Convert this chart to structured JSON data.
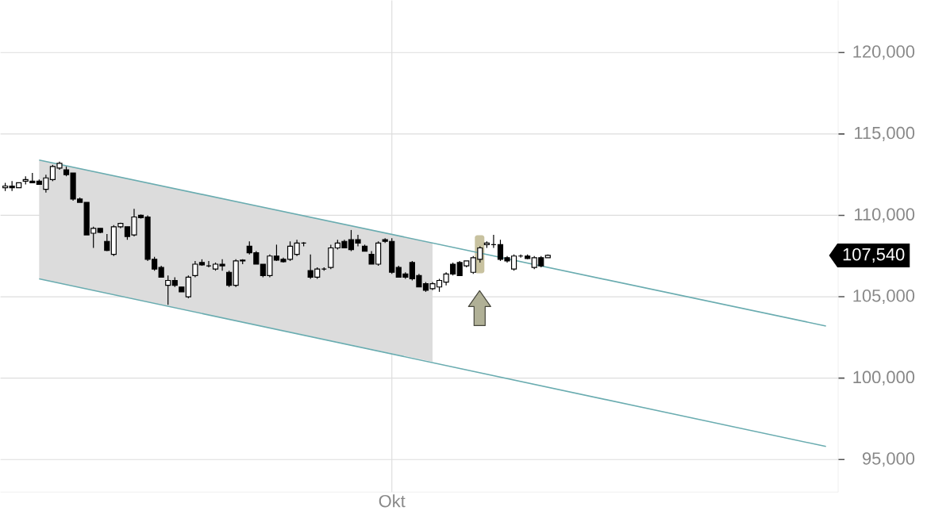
{
  "chart_data": {
    "type": "candlestick",
    "ylim": [
      93000,
      123200
    ],
    "yticks": [
      {
        "value": 95000,
        "label": "95,000"
      },
      {
        "value": 100000,
        "label": "100,000"
      },
      {
        "value": 105000,
        "label": "105,000"
      },
      {
        "value": 110000,
        "label": "110,000"
      },
      {
        "value": 115000,
        "label": "115,000"
      },
      {
        "value": 120000,
        "label": "120,000"
      }
    ],
    "grid": true,
    "categories": [
      null,
      null,
      null,
      null,
      null,
      null,
      null,
      null,
      null,
      null,
      null,
      null,
      null,
      null,
      null,
      null,
      null,
      null,
      null,
      null,
      null,
      null,
      null,
      null,
      null,
      null,
      null,
      null,
      null,
      null,
      null,
      null,
      null,
      null,
      null,
      null,
      null,
      null,
      null,
      null,
      null,
      null,
      null,
      null,
      null,
      null,
      null,
      null,
      null,
      null,
      null,
      null,
      null,
      null,
      null,
      null,
      null,
      "Okt",
      null,
      null,
      null,
      null,
      null,
      null,
      null,
      null,
      null,
      null,
      null,
      null,
      null,
      null,
      null,
      null,
      null,
      null,
      null,
      null,
      null,
      null,
      null,
      null,
      null,
      null,
      null,
      null,
      null,
      null,
      null,
      null,
      null,
      null,
      null,
      null,
      null,
      null,
      null,
      null,
      null,
      null,
      null,
      null,
      null,
      null,
      null,
      null,
      null,
      null,
      null,
      null,
      null,
      null,
      null,
      null,
      null,
      null,
      null,
      null,
      null,
      null,
      null,
      null,
      null
    ],
    "annotations": [
      "107,540"
    ],
    "series": [
      {
        "type": "line",
        "color": "#6aacb0",
        "values": [
          null,
          null,
          null,
          null,
          null,
          113400,
          null,
          null,
          null,
          null,
          null,
          null,
          null,
          null,
          null,
          null,
          null,
          null,
          null,
          null,
          null,
          null,
          null,
          null,
          null,
          null,
          null,
          null,
          null,
          null,
          null,
          null,
          null,
          null,
          null,
          null,
          null,
          null,
          null,
          null,
          null,
          null,
          null,
          null,
          null,
          null,
          null,
          null,
          null,
          null,
          null,
          null,
          null,
          null,
          null,
          null,
          null,
          null,
          null,
          null,
          null,
          null,
          null,
          null,
          null,
          null,
          null,
          null,
          null,
          null,
          null,
          null,
          null,
          null,
          null,
          null,
          null,
          null,
          null,
          null,
          null,
          null,
          null,
          null,
          null,
          null,
          null,
          null,
          null,
          null,
          null,
          null,
          null,
          null,
          null,
          null,
          null,
          null,
          null,
          null,
          null,
          null,
          null,
          null,
          null,
          null,
          null,
          null,
          null,
          null,
          null,
          null,
          null,
          null,
          null,
          null,
          null,
          null,
          null,
          null,
          null,
          103200,
          null
        ],
        "upper": [
          null,
          null,
          null,
          null,
          null,
          113400,
          null,
          null,
          null,
          null,
          null,
          null,
          null,
          null,
          null,
          null,
          null,
          null,
          null,
          null,
          null,
          null,
          null,
          null,
          null,
          null,
          null,
          null,
          null,
          null,
          null,
          null,
          null,
          null,
          null,
          null,
          null,
          null,
          null,
          null,
          null,
          null,
          null,
          null,
          null,
          null,
          null,
          null,
          null,
          null,
          null,
          null,
          null,
          null,
          null,
          null,
          null,
          null,
          null,
          null,
          null,
          null,
          null,
          108300,
          null,
          null,
          null,
          null,
          null,
          null,
          null,
          null,
          null,
          null,
          null,
          null,
          null,
          null,
          null,
          null,
          null,
          null,
          null,
          null,
          null,
          null,
          null,
          null,
          null,
          null,
          null,
          null,
          null,
          null,
          null,
          null,
          null,
          null,
          null,
          null,
          null,
          null,
          null,
          null,
          null,
          null,
          null,
          null,
          null,
          null,
          null,
          null,
          null,
          null,
          null,
          null,
          null,
          null,
          null,
          null,
          null,
          null,
          null
        ],
        "lower": [
          null,
          null,
          null,
          null,
          null,
          106100,
          null,
          null,
          null,
          null,
          null,
          null,
          null,
          null,
          null,
          null,
          null,
          null,
          null,
          null,
          null,
          null,
          null,
          null,
          null,
          null,
          null,
          null,
          null,
          null,
          null,
          null,
          null,
          null,
          null,
          null,
          null,
          null,
          null,
          null,
          null,
          null,
          null,
          null,
          null,
          null,
          null,
          null,
          null,
          null,
          null,
          null,
          null,
          null,
          null,
          null,
          null,
          null,
          null,
          null,
          null,
          null,
          null,
          101000,
          null,
          null,
          null,
          null,
          null,
          null,
          null,
          null,
          null,
          null,
          null,
          null,
          null,
          null,
          null,
          null,
          null,
          null,
          null,
          null,
          null,
          null,
          null,
          null,
          null,
          null,
          null,
          null,
          null,
          null,
          null,
          null,
          null,
          null,
          null,
          null,
          null,
          null,
          null,
          null,
          null,
          null,
          null,
          null,
          null,
          null,
          null,
          null,
          null,
          null,
          null,
          null,
          null,
          null,
          null,
          null,
          null,
          null,
          null
        ]
      },
      {
        "type": "line",
        "color": "#6aacb0",
        "values": [
          null,
          null,
          null,
          null,
          null,
          106100,
          null,
          null,
          null,
          null,
          null,
          null,
          null,
          null,
          null,
          null,
          null,
          null,
          null,
          null,
          null,
          null,
          null,
          null,
          null,
          null,
          null,
          null,
          null,
          null,
          null,
          null,
          null,
          null,
          null,
          null,
          null,
          null,
          null,
          null,
          null,
          null,
          null,
          null,
          null,
          null,
          null,
          null,
          null,
          null,
          null,
          null,
          null,
          null,
          null,
          null,
          null,
          null,
          null,
          null,
          null,
          null,
          null,
          null,
          null,
          null,
          null,
          null,
          null,
          null,
          null,
          null,
          null,
          null,
          null,
          null,
          null,
          null,
          null,
          null,
          null,
          null,
          null,
          null,
          null,
          null,
          null,
          null,
          null,
          null,
          null,
          null,
          null,
          null,
          null,
          null,
          null,
          null,
          null,
          null,
          null,
          null,
          null,
          null,
          null,
          null,
          null,
          null,
          null,
          null,
          null,
          null,
          null,
          null,
          null,
          null,
          null,
          null,
          null,
          null,
          null,
          95800,
          null
        ]
      },
      {
        "color": "#000000",
        "ohlc": [
          [
            111700,
            112000,
            111500,
            111800
          ],
          [
            111800,
            112100,
            111500,
            111700
          ],
          [
            111700,
            112000,
            111700,
            112000
          ],
          [
            112100,
            112400,
            111900,
            112200
          ],
          [
            112100,
            112600,
            112000,
            112000
          ],
          [
            112100,
            112200,
            111900,
            111900
          ],
          [
            111600,
            112500,
            111400,
            112300
          ],
          [
            112200,
            113100,
            112100,
            113000
          ],
          [
            112900,
            113300,
            112800,
            113200
          ],
          [
            112800,
            113000,
            112400,
            112500
          ],
          [
            112600,
            112600,
            110900,
            111000
          ],
          [
            111000,
            111100,
            110800,
            110800
          ],
          [
            110800,
            110800,
            108800,
            108800
          ],
          [
            108900,
            109300,
            108000,
            109200
          ],
          [
            109200,
            109200,
            108900,
            108950
          ],
          [
            108400,
            108850,
            107800,
            107850
          ],
          [
            107600,
            109400,
            107500,
            109300
          ],
          [
            109300,
            109550,
            109200,
            109500
          ],
          [
            109300,
            109300,
            108500,
            108700
          ],
          [
            108800,
            110400,
            108700,
            109900
          ],
          [
            110000,
            110050,
            109800,
            109850
          ],
          [
            109900,
            110000,
            107200,
            107300
          ],
          [
            107300,
            107450,
            106600,
            106700
          ],
          [
            106800,
            106900,
            106200,
            106200
          ],
          [
            105700,
            106300,
            104500,
            106000
          ],
          [
            106000,
            106200,
            105600,
            105700
          ],
          [
            105600,
            105600,
            105300,
            105300
          ],
          [
            105000,
            106300,
            104900,
            106200
          ],
          [
            106300,
            107200,
            106200,
            107000
          ],
          [
            107100,
            107300,
            106900,
            106950
          ],
          [
            106900,
            107200,
            106800,
            106900
          ],
          [
            106700,
            107100,
            106600,
            107000
          ],
          [
            107000,
            107300,
            106600,
            106900
          ],
          [
            106500,
            106600,
            105600,
            105700
          ],
          [
            105700,
            107300,
            105600,
            107200
          ],
          [
            107200,
            107300,
            107000,
            107250
          ],
          [
            108100,
            108400,
            107600,
            107700
          ],
          [
            107700,
            107800,
            107000,
            107000
          ],
          [
            107000,
            107000,
            106200,
            106300
          ],
          [
            106300,
            107600,
            106200,
            107500
          ],
          [
            107500,
            108200,
            107200,
            107250
          ],
          [
            107300,
            107400,
            107100,
            107150
          ],
          [
            107300,
            108400,
            107200,
            108100
          ],
          [
            107600,
            108500,
            107500,
            108300
          ],
          [
            108300,
            108350,
            108100,
            108300
          ],
          [
            106600,
            107600,
            106100,
            106200
          ],
          [
            106200,
            106800,
            106100,
            106700
          ],
          [
            106700,
            106800,
            106600,
            106700
          ],
          [
            106800,
            108200,
            106700,
            108000
          ],
          [
            108000,
            108500,
            107900,
            108300
          ],
          [
            108400,
            108500,
            108000,
            108000
          ],
          [
            108500,
            109100,
            107800,
            107900
          ],
          [
            108500,
            108800,
            108100,
            108300
          ],
          [
            108100,
            108200,
            107800,
            107800
          ],
          [
            107600,
            107800,
            107000,
            107000
          ],
          [
            107000,
            108400,
            106900,
            108300
          ],
          [
            108500,
            108600,
            108300,
            108400
          ],
          [
            108400,
            108600,
            106400,
            106500
          ],
          [
            106800,
            106900,
            106200,
            106200
          ],
          [
            106400,
            106500,
            106100,
            106200
          ],
          [
            107100,
            107200,
            106000,
            106100
          ],
          [
            106300,
            106400,
            105600,
            105600
          ],
          [
            105800,
            105900,
            105300,
            105400
          ],
          [
            105500,
            105900,
            105400,
            105800
          ],
          [
            105600,
            106100,
            105300,
            106000
          ],
          [
            105900,
            106500,
            105700,
            106400
          ],
          [
            107000,
            107100,
            106300,
            106400
          ],
          [
            107100,
            107200,
            106300,
            106300
          ],
          [
            106900,
            107200,
            106800,
            107200
          ],
          [
            106500,
            107500,
            106400,
            107400
          ],
          [
            107300,
            108100,
            107100,
            108000
          ],
          [
            108200,
            108400,
            108000,
            108300
          ],
          [
            108200,
            108800,
            108000,
            108200
          ],
          [
            108200,
            108500,
            107200,
            107300
          ],
          [
            107400,
            107500,
            107100,
            107200
          ],
          [
            106700,
            107600,
            106600,
            107500
          ],
          [
            107500,
            107600,
            107400,
            107500
          ],
          [
            107500,
            107600,
            107300,
            107350
          ],
          [
            106800,
            107500,
            106700,
            107400
          ],
          [
            107400,
            107500,
            106800,
            106900
          ],
          [
            107400,
            107600,
            107400,
            107540
          ],
          null,
          null,
          null,
          null,
          null,
          null,
          null,
          null,
          null,
          null,
          null,
          null,
          null,
          null,
          null,
          null,
          null,
          null,
          null,
          null,
          null,
          null,
          null,
          null,
          null,
          null,
          null,
          null,
          null,
          null,
          null,
          null,
          null,
          null,
          null,
          null,
          null,
          null,
          null,
          null,
          null,
          null
        ]
      }
    ]
  }
}
